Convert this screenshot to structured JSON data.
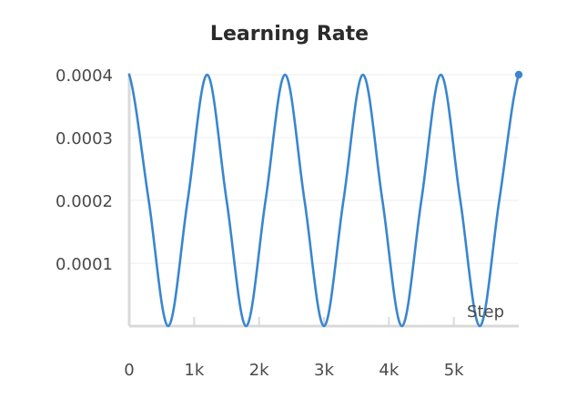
{
  "chart_data": {
    "type": "line",
    "title": "Learning Rate",
    "xlabel": "Step",
    "ylabel": "",
    "x_ticks": [
      "0",
      "1k",
      "2k",
      "3k",
      "4k",
      "5k"
    ],
    "x_tick_values": [
      0,
      1000,
      2000,
      3000,
      4000,
      5000
    ],
    "y_ticks": [
      "0.0001",
      "0.0002",
      "0.0003",
      "0.0004"
    ],
    "y_tick_values": [
      0.0001,
      0.0002,
      0.0003,
      0.0004
    ],
    "xlim": [
      0,
      6000
    ],
    "ylim": [
      0,
      0.0004
    ],
    "grid": true,
    "series": [
      {
        "color": "#3a86cf",
        "x": [
          0,
          300,
          600,
          900,
          1200,
          1500,
          1800,
          2100,
          2400,
          2700,
          3000,
          3300,
          3600,
          3900,
          4200,
          4500,
          4800,
          5100,
          5400,
          5700,
          6000
        ],
        "y": [
          0.0004,
          0.0002,
          0.0,
          0.0002,
          0.0004,
          0.0002,
          0.0,
          0.0002,
          0.0004,
          0.0002,
          0.0,
          0.0002,
          0.0004,
          0.0002,
          0.0,
          0.0002,
          0.0004,
          0.0002,
          0.0,
          0.0002,
          0.0004
        ]
      }
    ]
  }
}
